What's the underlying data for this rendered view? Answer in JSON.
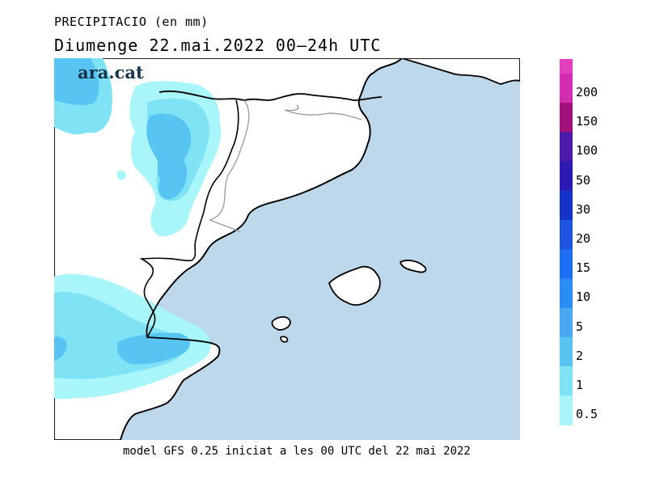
{
  "header": {
    "variable": "PRECIPITACIO (en mm)",
    "date_line": "Diumenge  22.mai.2022 00—24h UTC"
  },
  "map": {
    "brand": "ara.cat",
    "sea_color": "#bcd8ea",
    "land_color": "#ffffff",
    "coast_color": "#000000",
    "border_color": "#9e9e9e"
  },
  "legend": {
    "labels": [
      "200",
      "150",
      "100",
      "50",
      "30",
      "20",
      "15",
      "10",
      "5",
      "2",
      "1",
      "0.5"
    ],
    "colors": [
      "#d22db0",
      "#a0117a",
      "#4b1aa8",
      "#2b1bb4",
      "#1535c8",
      "#1f54e0",
      "#1c6ff0",
      "#2a8cf5",
      "#49a8f0",
      "#58c4f2",
      "#7fe3f5",
      "#a8f6fa"
    ]
  },
  "footer": {
    "model_info": "model GFS 0.25 iniciat a les 00 UTC del 22 mai 2022"
  }
}
